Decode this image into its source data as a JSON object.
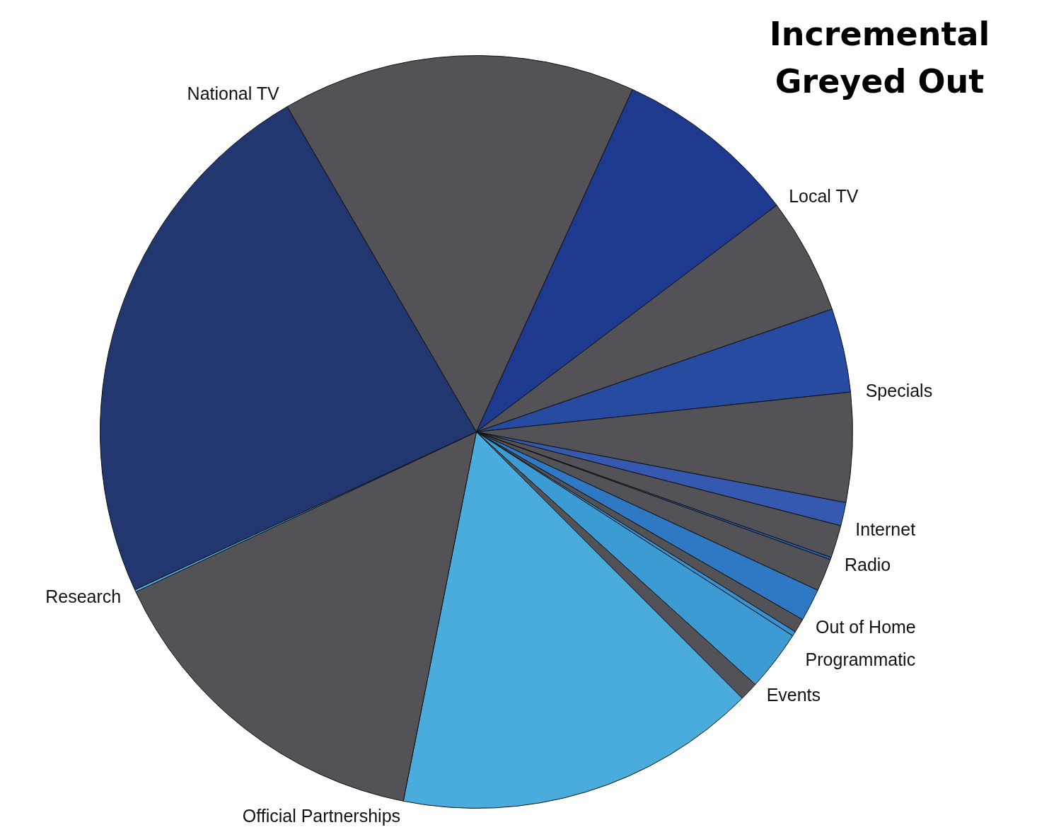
{
  "chart_data": {
    "type": "pie",
    "title": "Incremental\nGreyed Out",
    "categories": [
      null,
      "Local TV",
      null,
      "Specials",
      null,
      "Internet",
      null,
      "Radio",
      null,
      "Out of Home",
      null,
      "Programmatic",
      "Events",
      null,
      "Official Partnerships",
      null,
      "Research",
      "National TV"
    ],
    "values": [
      15.2,
      7.9,
      5.0,
      3.6,
      4.7,
      1.0,
      1.4,
      0.1,
      1.4,
      1.4,
      0.6,
      0.2,
      2.6,
      0.8,
      15.6,
      14.9,
      0.1,
      23.5
    ],
    "colors": [
      "#525257",
      "#1e3a8e",
      "#525257",
      "#264ba0",
      "#525257",
      "#3559b0",
      "#525257",
      "#2d5fb5",
      "#525257",
      "#2f78c4",
      "#525257",
      "#3a90d0",
      "#3d9bd4",
      "#525257",
      "#4aabdd",
      "#525257",
      "#4ab0e0",
      "#22366f"
    ]
  }
}
